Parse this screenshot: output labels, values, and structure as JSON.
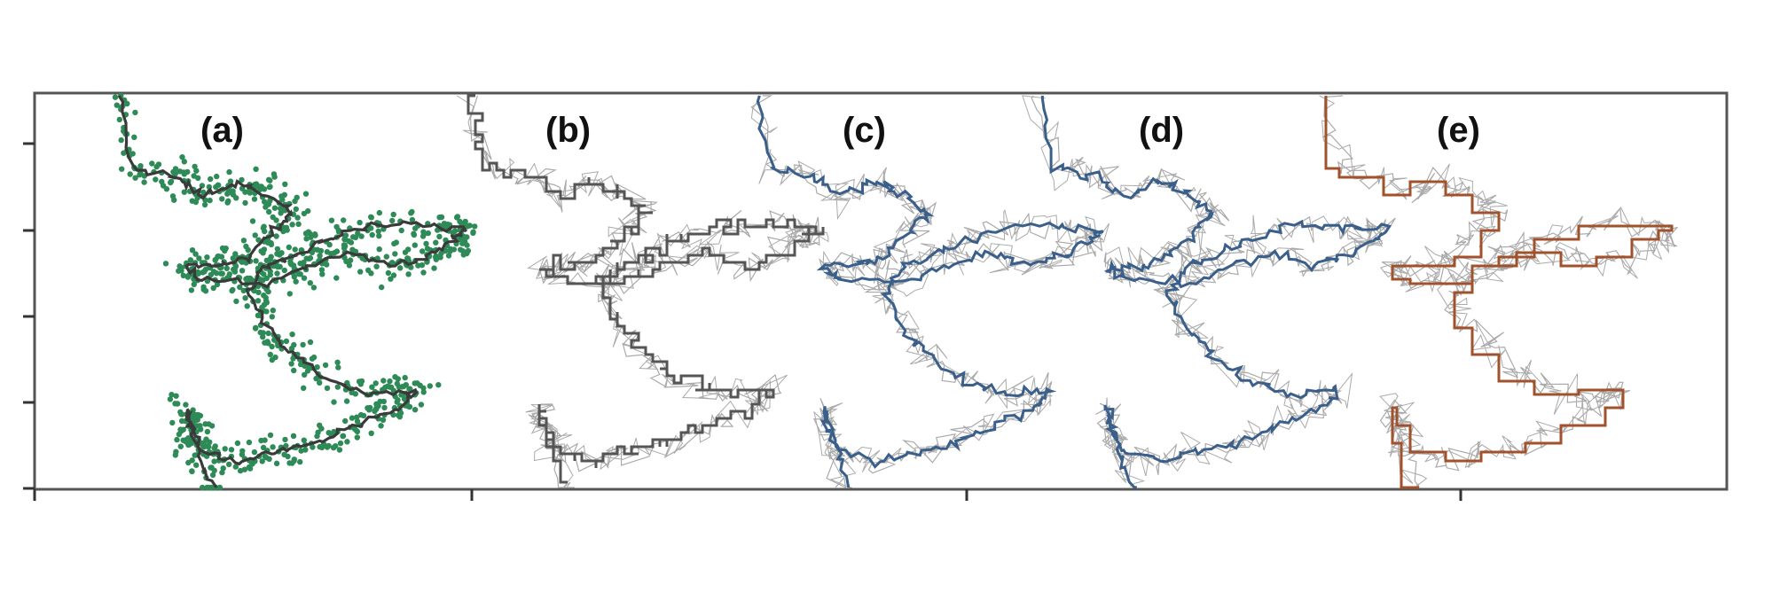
{
  "figure": {
    "panels": [
      {
        "id": "a",
        "label": "(a)",
        "style": "points",
        "color": "#2e8b57",
        "track_color": "#3a3a3a"
      },
      {
        "id": "b",
        "label": "(b)",
        "style": "grid-path",
        "color": "#555555",
        "track_color": "#aaaaaa"
      },
      {
        "id": "c",
        "label": "(c)",
        "style": "smooth-path",
        "color": "#3a5f8a",
        "track_color": "#aaaaaa"
      },
      {
        "id": "d",
        "label": "(d)",
        "style": "smooth-path",
        "color": "#3a5f8a",
        "track_color": "#aaaaaa"
      },
      {
        "id": "e",
        "label": "(e)",
        "style": "orthogonal-path",
        "color": "#a0522d",
        "track_color": "#aaaaaa"
      }
    ],
    "frame_color": "#555555",
    "tick_color": "#333333"
  }
}
